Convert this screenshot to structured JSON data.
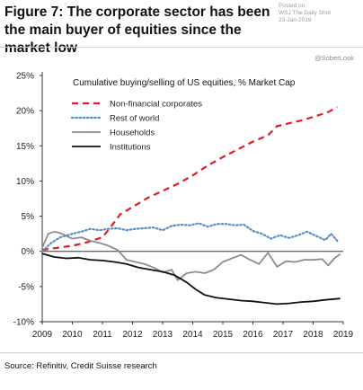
{
  "header": {
    "title": "Figure 7: The corporate sector has been the main buyer of equities since the market low"
  },
  "watermark": {
    "lines": [
      "Posted on",
      "WSJ The Daily Shot",
      "23-Jan-2019"
    ],
    "handle": "@SoberLook"
  },
  "footer": {
    "source": "Source: Refinitiv, Credit Suisse research"
  },
  "chart_data": {
    "type": "line",
    "title": "Cumulative buying/selling of US equities, % Market Cap",
    "xlabel": "",
    "ylabel": "",
    "xlim": [
      2009,
      2019
    ],
    "ylim": [
      -10,
      25
    ],
    "x_ticks": [
      "2009",
      "2010",
      "2011",
      "2012",
      "2013",
      "2014",
      "2015",
      "2016",
      "2017",
      "2018",
      "2019"
    ],
    "y_ticks": [
      "25%",
      "20%",
      "15%",
      "10%",
      "5%",
      "0%",
      "-5%",
      "-10%"
    ],
    "y_tick_values": [
      25,
      20,
      15,
      10,
      5,
      0,
      -5,
      -10
    ],
    "grid": false,
    "legend_position": "top-left",
    "series": [
      {
        "name": "Non-financial corporates",
        "color": "#e31b23",
        "style": "dashed",
        "points": [
          [
            2009.0,
            0.2
          ],
          [
            2009.5,
            0.5
          ],
          [
            2010.0,
            0.8
          ],
          [
            2010.5,
            1.3
          ],
          [
            2011.0,
            2.0
          ],
          [
            2011.3,
            3.6
          ],
          [
            2011.6,
            5.3
          ],
          [
            2012.0,
            6.3
          ],
          [
            2012.5,
            7.6
          ],
          [
            2013.0,
            8.6
          ],
          [
            2013.5,
            9.6
          ],
          [
            2014.0,
            10.8
          ],
          [
            2014.5,
            12.2
          ],
          [
            2015.0,
            13.4
          ],
          [
            2015.5,
            14.5
          ],
          [
            2016.0,
            15.6
          ],
          [
            2016.5,
            16.5
          ],
          [
            2016.8,
            17.8
          ],
          [
            2017.2,
            18.2
          ],
          [
            2017.6,
            18.6
          ],
          [
            2018.0,
            19.1
          ],
          [
            2018.5,
            19.8
          ],
          [
            2018.8,
            20.5
          ]
        ]
      },
      {
        "name": "Rest of world",
        "color": "#5b8fc2",
        "style": "dotted",
        "points": [
          [
            2009.0,
            0.0
          ],
          [
            2009.3,
            1.2
          ],
          [
            2009.6,
            2.0
          ],
          [
            2010.0,
            2.5
          ],
          [
            2010.3,
            2.8
          ],
          [
            2010.6,
            3.2
          ],
          [
            2010.9,
            3.0
          ],
          [
            2011.2,
            3.2
          ],
          [
            2011.5,
            3.3
          ],
          [
            2011.8,
            3.0
          ],
          [
            2012.1,
            3.2
          ],
          [
            2012.4,
            3.3
          ],
          [
            2012.7,
            3.4
          ],
          [
            2013.0,
            3.0
          ],
          [
            2013.3,
            3.6
          ],
          [
            2013.6,
            3.8
          ],
          [
            2013.9,
            3.7
          ],
          [
            2014.2,
            4.0
          ],
          [
            2014.5,
            3.5
          ],
          [
            2014.8,
            3.9
          ],
          [
            2015.1,
            3.9
          ],
          [
            2015.4,
            3.7
          ],
          [
            2015.7,
            3.8
          ],
          [
            2016.0,
            2.9
          ],
          [
            2016.3,
            2.5
          ],
          [
            2016.6,
            1.8
          ],
          [
            2016.9,
            2.3
          ],
          [
            2017.2,
            1.9
          ],
          [
            2017.5,
            2.3
          ],
          [
            2017.8,
            2.8
          ],
          [
            2018.1,
            2.2
          ],
          [
            2018.4,
            1.6
          ],
          [
            2018.6,
            2.5
          ],
          [
            2018.8,
            1.5
          ]
        ]
      },
      {
        "name": "Households",
        "color": "#8c8c8c",
        "style": "solid",
        "points": [
          [
            2009.0,
            0.5
          ],
          [
            2009.2,
            2.5
          ],
          [
            2009.4,
            2.8
          ],
          [
            2009.6,
            2.6
          ],
          [
            2009.8,
            2.2
          ],
          [
            2010.0,
            1.8
          ],
          [
            2010.3,
            2.0
          ],
          [
            2010.6,
            1.5
          ],
          [
            2010.9,
            1.2
          ],
          [
            2011.2,
            0.8
          ],
          [
            2011.5,
            0.2
          ],
          [
            2011.8,
            -1.2
          ],
          [
            2012.1,
            -1.5
          ],
          [
            2012.4,
            -1.8
          ],
          [
            2012.7,
            -2.3
          ],
          [
            2013.0,
            -3.0
          ],
          [
            2013.3,
            -2.6
          ],
          [
            2013.5,
            -4.1
          ],
          [
            2013.8,
            -3.1
          ],
          [
            2014.1,
            -2.9
          ],
          [
            2014.4,
            -3.1
          ],
          [
            2014.7,
            -2.6
          ],
          [
            2015.0,
            -1.5
          ],
          [
            2015.3,
            -1.0
          ],
          [
            2015.6,
            -0.5
          ],
          [
            2015.9,
            -1.2
          ],
          [
            2016.2,
            -1.8
          ],
          [
            2016.5,
            -0.2
          ],
          [
            2016.8,
            -2.2
          ],
          [
            2017.1,
            -1.4
          ],
          [
            2017.4,
            -1.5
          ],
          [
            2017.7,
            -1.2
          ],
          [
            2018.0,
            -1.2
          ],
          [
            2018.3,
            -1.1
          ],
          [
            2018.5,
            -2.0
          ],
          [
            2018.7,
            -1.0
          ],
          [
            2018.9,
            -0.4
          ]
        ]
      },
      {
        "name": "Institutions",
        "color": "#111111",
        "style": "solid",
        "points": [
          [
            2009.0,
            -0.3
          ],
          [
            2009.4,
            -0.8
          ],
          [
            2009.8,
            -1.0
          ],
          [
            2010.2,
            -0.9
          ],
          [
            2010.6,
            -1.2
          ],
          [
            2011.0,
            -1.3
          ],
          [
            2011.4,
            -1.5
          ],
          [
            2011.8,
            -1.8
          ],
          [
            2012.2,
            -2.3
          ],
          [
            2012.6,
            -2.6
          ],
          [
            2013.0,
            -2.9
          ],
          [
            2013.4,
            -3.4
          ],
          [
            2013.8,
            -4.4
          ],
          [
            2014.1,
            -5.4
          ],
          [
            2014.4,
            -6.2
          ],
          [
            2014.8,
            -6.6
          ],
          [
            2015.2,
            -6.8
          ],
          [
            2015.6,
            -7.0
          ],
          [
            2016.0,
            -7.1
          ],
          [
            2016.4,
            -7.3
          ],
          [
            2016.8,
            -7.5
          ],
          [
            2017.2,
            -7.4
          ],
          [
            2017.6,
            -7.2
          ],
          [
            2018.0,
            -7.1
          ],
          [
            2018.4,
            -6.9
          ],
          [
            2018.9,
            -6.7
          ]
        ]
      }
    ]
  }
}
